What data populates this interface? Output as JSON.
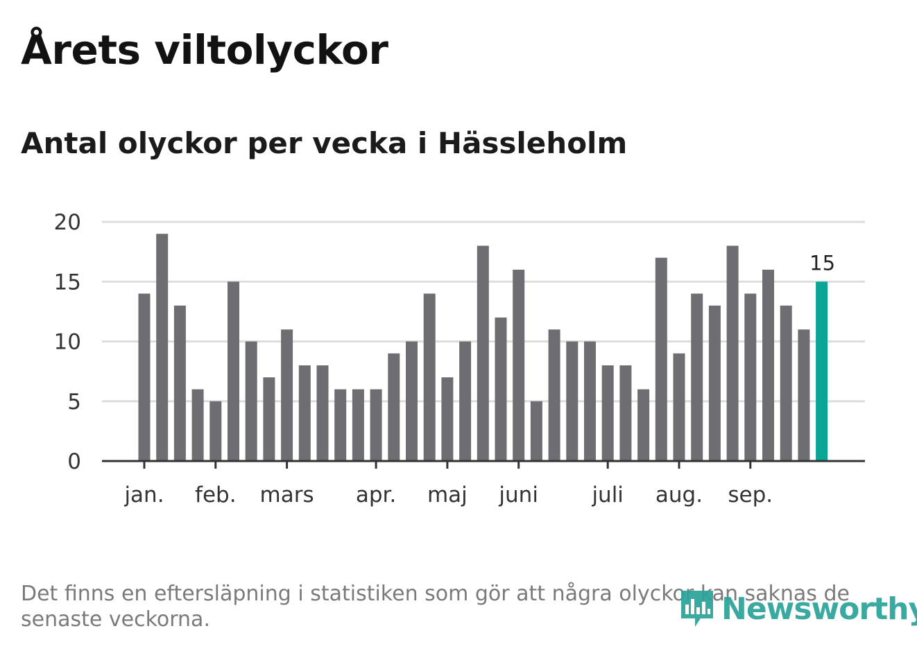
{
  "title": "Årets viltolyckor",
  "subtitle": "Antal olyckor per vecka i Hässleholm",
  "footnote": "Det finns en eftersläpning i statistiken som gör att några olyckor kan saknas de senaste veckorna.",
  "logo_text": "Newsworthy",
  "colors": {
    "bar": "#6e6d72",
    "highlight": "#0aa597",
    "grid": "#dddddd",
    "axis": "#333333"
  },
  "chart_data": {
    "type": "bar",
    "title": "Årets viltolyckor",
    "subtitle": "Antal olyckor per vecka i Hässleholm",
    "xlabel": "",
    "ylabel": "",
    "ylim": [
      0,
      20
    ],
    "yticks": [
      0,
      5,
      10,
      15,
      20
    ],
    "grid": true,
    "values": [
      14,
      19,
      13,
      6,
      5,
      15,
      10,
      7,
      11,
      8,
      8,
      6,
      6,
      6,
      9,
      10,
      14,
      7,
      10,
      18,
      12,
      16,
      5,
      11,
      10,
      10,
      8,
      8,
      6,
      17,
      9,
      14,
      13,
      18,
      14,
      16,
      13,
      11,
      15
    ],
    "highlight_index": 38,
    "highlight_label": "15",
    "month_ticks": [
      {
        "label": "jan.",
        "week": 0
      },
      {
        "label": "feb.",
        "week": 4
      },
      {
        "label": "mars",
        "week": 8
      },
      {
        "label": "apr.",
        "week": 13
      },
      {
        "label": "maj",
        "week": 17
      },
      {
        "label": "juni",
        "week": 21
      },
      {
        "label": "juli",
        "week": 26
      },
      {
        "label": "aug.",
        "week": 30
      },
      {
        "label": "sep.",
        "week": 34
      }
    ]
  }
}
